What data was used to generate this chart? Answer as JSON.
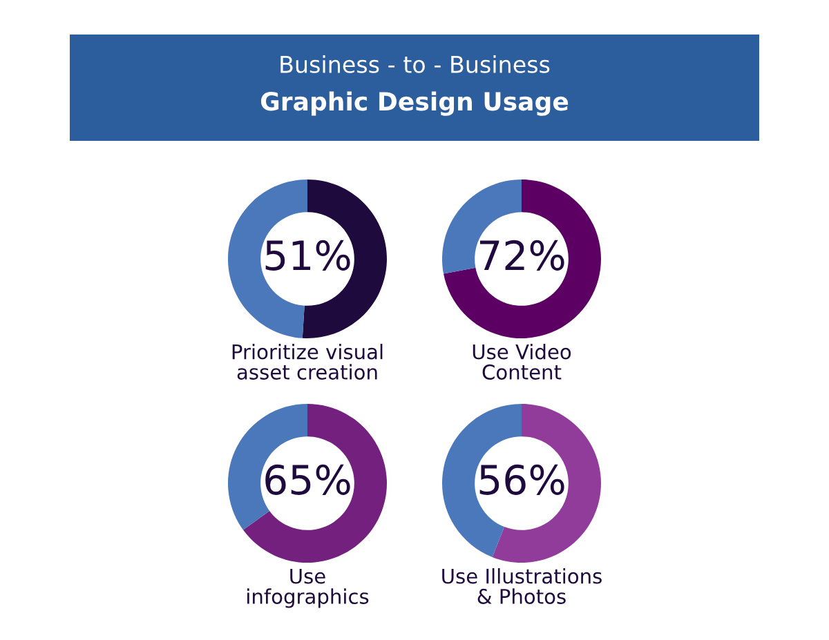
{
  "chart_data": [
    {
      "type": "other",
      "subtitle": "Business - to - Business",
      "title": "Graphic Design Usage",
      "color": "#2c5e9e"
    },
    {
      "type": "donut",
      "categories": [
        null,
        null
      ],
      "values": [
        51,
        49
      ],
      "colors": [
        "#1e0a3c",
        "#4a78bb"
      ],
      "value_labels": [
        "51%",
        null
      ],
      "xlabel": "Prioritize visual\nasset creation"
    },
    {
      "type": "donut",
      "categories": [
        null,
        null
      ],
      "values": [
        72,
        28
      ],
      "colors": [
        "#5c0063",
        "#4a78bb"
      ],
      "value_labels": [
        "72%",
        null
      ],
      "xlabel": "Use Video\nContent"
    },
    {
      "type": "donut",
      "categories": [
        null,
        null
      ],
      "values": [
        65,
        35
      ],
      "colors": [
        "#74207f",
        "#4a78bb"
      ],
      "value_labels": [
        "65%",
        null
      ],
      "xlabel": "Use\ninfographics"
    },
    {
      "type": "donut",
      "categories": [
        null,
        null
      ],
      "values": [
        56,
        44
      ],
      "colors": [
        "#913b9b",
        "#4a78bb"
      ],
      "value_labels": [
        "56%",
        null
      ],
      "xlabel": "Use Illustrations\n& Photos"
    }
  ]
}
